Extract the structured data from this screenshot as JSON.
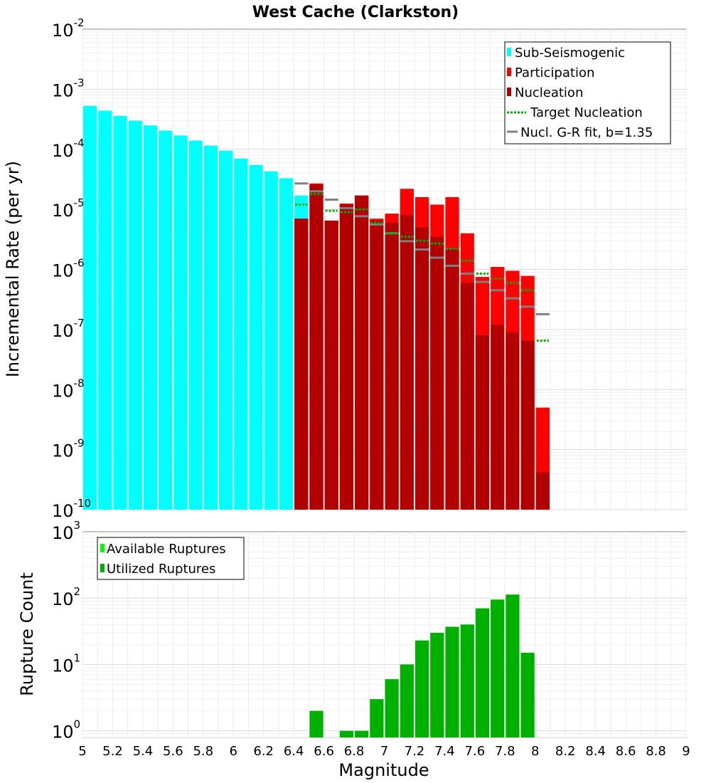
{
  "chart_data": [
    {
      "type": "bar",
      "title": "West Cache (Clarkston)",
      "xlabel": "Magnitude",
      "ylabel": "Incremental Rate (per yr)",
      "yscale": "log",
      "xlim": [
        5,
        9
      ],
      "ylim_exp": [
        -10,
        -2
      ],
      "ytick_exponents": [
        "-2",
        "-3",
        "-4",
        "-5",
        "-6",
        "-7",
        "-8",
        "-9",
        "-10"
      ],
      "ytick_base": "10",
      "bin_width": 0.1,
      "colors": {
        "sub_seismogenic": "#00ffff",
        "participation": "#ff0000",
        "nucleation": "#b20000",
        "target": "#00b000",
        "gr_fit": "#808080",
        "nucl_fit_marker": "#333333"
      },
      "legend": {
        "position": "top-right",
        "entries": [
          "Sub-Seismogenic",
          "Participation",
          "Nucleation",
          "Target Nucleation",
          "Nucl. G-R fit, b=1.35"
        ]
      },
      "series": [
        {
          "name": "Sub-Seismogenic",
          "x": [
            5.05,
            5.15,
            5.25,
            5.35,
            5.45,
            5.55,
            5.65,
            5.75,
            5.85,
            5.95,
            6.05,
            6.15,
            6.25,
            6.35,
            6.45
          ],
          "values": [
            0.00053,
            0.00044,
            0.00036,
            0.0003,
            0.00025,
            0.000205,
            0.00017,
            0.00014,
            0.000115,
            9.5e-05,
            7e-05,
            5.5e-05,
            4.3e-05,
            3.3e-05,
            1.7e-05
          ]
        },
        {
          "name": "Participation",
          "x": [
            6.45,
            6.55,
            6.65,
            6.75,
            6.85,
            6.95,
            7.05,
            7.15,
            7.25,
            7.35,
            7.45,
            7.55,
            7.65,
            7.75,
            7.85,
            7.95,
            8.05
          ],
          "values": [
            7e-06,
            2.7e-05,
            6.5e-06,
            1.25e-05,
            1.7e-05,
            7e-06,
            8.5e-06,
            2.2e-05,
            1.6e-05,
            1.2e-05,
            1.6e-05,
            4e-06,
            7.5e-07,
            1.1e-06,
            9.5e-07,
            7.8e-07,
            5e-09
          ]
        },
        {
          "name": "Nucleation",
          "x": [
            6.45,
            6.55,
            6.65,
            6.75,
            6.85,
            6.95,
            7.05,
            7.15,
            7.25,
            7.35,
            7.45,
            7.55,
            7.65,
            7.75,
            7.85,
            7.95,
            8.05
          ],
          "values": [
            7e-06,
            2.6e-05,
            6.5e-06,
            1.2e-05,
            1.7e-05,
            6.5e-06,
            6e-06,
            8e-06,
            5e-06,
            3.5e-06,
            2.2e-06,
            6e-07,
            8e-08,
            1.2e-07,
            9e-08,
            6.5e-08,
            4.2e-10
          ]
        },
        {
          "name": "Target Nucleation",
          "x": [
            6.45,
            6.55,
            6.65,
            6.75,
            6.85,
            6.95,
            7.05,
            7.15,
            7.25,
            7.35,
            7.45,
            7.55,
            7.65,
            7.75,
            7.85,
            7.95,
            8.05
          ],
          "values": [
            1.2e-05,
            1.8e-05,
            9.5e-06,
            9e-06,
            1e-05,
            6e-06,
            4e-06,
            3.5e-06,
            3e-06,
            2.7e-06,
            2.2e-06,
            1.4e-06,
            8.5e-07,
            7e-07,
            6e-07,
            4.5e-07,
            6.5e-08
          ]
        },
        {
          "name": "Nucl. G-R fit, b=1.35",
          "x": [
            6.45,
            6.55,
            6.65,
            6.75,
            6.85,
            6.95,
            7.05,
            7.15,
            7.25,
            7.35,
            7.45,
            7.55,
            7.65,
            7.75,
            7.85,
            7.95,
            8.05
          ],
          "values": [
            2.7e-05,
            2e-05,
            1.45e-05,
            1.05e-05,
            7.7e-06,
            5.6e-06,
            4e-06,
            2.95e-06,
            2.15e-06,
            1.57e-06,
            1.15e-06,
            8.5e-07,
            6.2e-07,
            4.5e-07,
            3.3e-07,
            2.4e-07,
            1.8e-07
          ]
        }
      ]
    },
    {
      "type": "bar",
      "title": "",
      "xlabel": "Magnitude",
      "ylabel": "Rupture Count",
      "yscale": "log",
      "xlim": [
        5,
        9
      ],
      "ylim_exp": [
        -0.1,
        3
      ],
      "ytick_exponents": [
        "3",
        "2",
        "1",
        "0"
      ],
      "ytick_base": "10",
      "xticks": [
        "5",
        "5.2",
        "5.4",
        "5.6",
        "5.8",
        "6",
        "6.2",
        "6.4",
        "6.6",
        "6.8",
        "7",
        "7.2",
        "7.4",
        "7.6",
        "7.8",
        "8",
        "8.2",
        "8.4",
        "8.6",
        "8.8",
        "9"
      ],
      "bin_width": 0.1,
      "colors": {
        "available": "#00ff00",
        "utilized": "#00b000"
      },
      "legend": {
        "position": "top-left",
        "entries": [
          "Available Ruptures",
          "Utilized Ruptures"
        ]
      },
      "series": [
        {
          "name": "Utilized Ruptures",
          "x": [
            6.55,
            6.75,
            6.85,
            6.95,
            7.05,
            7.15,
            7.25,
            7.35,
            7.45,
            7.55,
            7.65,
            7.75,
            7.85,
            7.95
          ],
          "values": [
            2,
            1,
            1,
            3,
            6,
            10,
            23,
            30,
            37,
            40,
            70,
            95,
            113,
            15
          ]
        }
      ]
    }
  ]
}
